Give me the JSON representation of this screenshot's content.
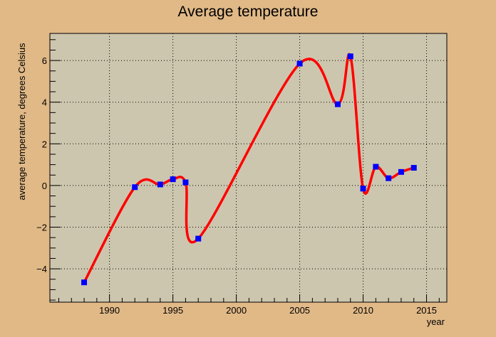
{
  "chart_data": {
    "type": "line",
    "title": "Average temperature",
    "xlabel": "year",
    "ylabel": "average temperature, degrees Celsius",
    "xlim": [
      1985.3,
      2016.6
    ],
    "ylim": [
      -5.6,
      7.3
    ],
    "x_ticks": [
      1990,
      1995,
      2000,
      2005,
      2010,
      2015
    ],
    "y_ticks": [
      -4,
      -2,
      0,
      2,
      4,
      6
    ],
    "grid": true,
    "legend": "none",
    "series": [
      {
        "x": [
          1988,
          1992,
          1994,
          1995,
          1996,
          1997,
          2005,
          2008,
          2009,
          2010,
          2011,
          2012,
          2013,
          2014
        ],
        "y": [
          -4.65,
          -0.08,
          0.05,
          0.3,
          0.15,
          -2.55,
          5.85,
          3.9,
          6.2,
          -0.15,
          0.9,
          0.35,
          0.65,
          0.85
        ],
        "marker": "square",
        "marker_color": "#0000ff",
        "line_color": "#ff0000"
      }
    ],
    "colors": {
      "page_background": "#e1b987",
      "plot_background": "#cdc6ae",
      "curve": "#ff0000",
      "markers": "#0000ff"
    }
  }
}
